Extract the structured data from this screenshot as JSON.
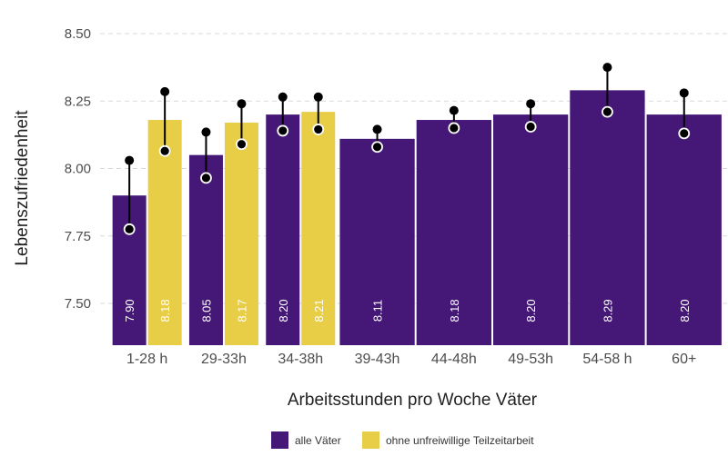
{
  "chart_data": {
    "type": "bar",
    "title": "",
    "xlabel": "Arbeitsstunden pro Woche Väter",
    "ylabel": "Lebenszufriedenheit",
    "ylim": [
      7.4,
      8.5
    ],
    "yticks": [
      "7.50",
      "7.75",
      "8.00",
      "8.25",
      "8.50"
    ],
    "grid": true,
    "legend_position": "bottom",
    "categories": [
      "1-28 h",
      "29-33h",
      "34-38h",
      "39-43h",
      "44-48h",
      "49-53h",
      "54-58 h",
      "60+"
    ],
    "series": [
      {
        "name": "alle Väter",
        "color": "#451877",
        "values": [
          7.9,
          8.05,
          8.2,
          8.11,
          8.18,
          8.2,
          8.29,
          8.2
        ],
        "labels": [
          "7.90",
          "8.05",
          "8.20",
          "8.11",
          "8.18",
          "8.20",
          "8.29",
          "8.20"
        ],
        "ci_low": [
          7.775,
          7.965,
          8.14,
          8.08,
          8.15,
          8.155,
          8.21,
          8.13
        ],
        "ci_high": [
          8.03,
          8.135,
          8.265,
          8.145,
          8.215,
          8.24,
          8.375,
          8.28
        ]
      },
      {
        "name": "ohne unfreiwillige Teilzeitarbeit",
        "color": "#e8cd46",
        "values": [
          8.18,
          8.17,
          8.21,
          null,
          null,
          null,
          null,
          null
        ],
        "labels": [
          "8.18",
          "8.17",
          "8.21",
          null,
          null,
          null,
          null,
          null
        ],
        "ci_low": [
          8.065,
          8.09,
          8.145,
          null,
          null,
          null,
          null,
          null
        ],
        "ci_high": [
          8.285,
          8.24,
          8.265,
          null,
          null,
          null,
          null,
          null
        ]
      }
    ]
  }
}
